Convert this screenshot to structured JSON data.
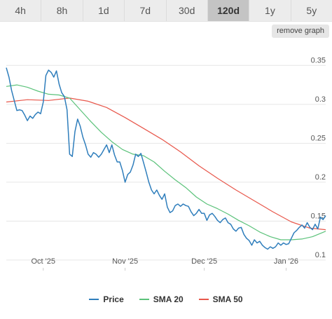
{
  "tabs": [
    {
      "label": "4h",
      "active": false
    },
    {
      "label": "8h",
      "active": false
    },
    {
      "label": "1d",
      "active": false
    },
    {
      "label": "7d",
      "active": false
    },
    {
      "label": "30d",
      "active": false
    },
    {
      "label": "120d",
      "active": true
    },
    {
      "label": "1y",
      "active": false
    },
    {
      "label": "5y",
      "active": false
    }
  ],
  "remove_graph_label": "remove graph",
  "chart_data": {
    "type": "line",
    "title": "",
    "xlabel": "",
    "ylabel": "",
    "x_range": [
      "2025-09-17",
      "2026-01-16"
    ],
    "x_ticks": [
      {
        "date": "2025-10-01",
        "label": "Oct '25"
      },
      {
        "date": "2025-11-01",
        "label": "Nov '25"
      },
      {
        "date": "2025-12-01",
        "label": "Dec '25"
      },
      {
        "date": "2026-01-01",
        "label": "Jan '26"
      }
    ],
    "y_ticks": [
      0.1,
      0.15,
      0.2,
      0.25,
      0.3,
      0.35
    ],
    "y_tick_labels": [
      "0.1",
      "0.15",
      "0.2",
      "0.25",
      "0.3",
      "0.35"
    ],
    "ylim": [
      0.09,
      0.38
    ],
    "grid": "horizontal",
    "y_axis_side": "right",
    "legend_position": "bottom",
    "series": [
      {
        "name": "Price",
        "color": "#2f7ebc",
        "points": [
          [
            "2025-09-17",
            0.347
          ],
          [
            "2025-09-18",
            0.335
          ],
          [
            "2025-09-19",
            0.318
          ],
          [
            "2025-09-20",
            0.305
          ],
          [
            "2025-09-21",
            0.292
          ],
          [
            "2025-09-22",
            0.293
          ],
          [
            "2025-09-23",
            0.292
          ],
          [
            "2025-09-24",
            0.286
          ],
          [
            "2025-09-25",
            0.279
          ],
          [
            "2025-09-26",
            0.285
          ],
          [
            "2025-09-27",
            0.282
          ],
          [
            "2025-09-28",
            0.287
          ],
          [
            "2025-09-29",
            0.29
          ],
          [
            "2025-09-30",
            0.288
          ],
          [
            "2025-10-01",
            0.303
          ],
          [
            "2025-10-02",
            0.337
          ],
          [
            "2025-10-03",
            0.344
          ],
          [
            "2025-10-04",
            0.341
          ],
          [
            "2025-10-05",
            0.335
          ],
          [
            "2025-10-06",
            0.343
          ],
          [
            "2025-10-07",
            0.326
          ],
          [
            "2025-10-08",
            0.315
          ],
          [
            "2025-10-09",
            0.31
          ],
          [
            "2025-10-10",
            0.293
          ],
          [
            "2025-10-11",
            0.236
          ],
          [
            "2025-10-12",
            0.233
          ],
          [
            "2025-10-13",
            0.265
          ],
          [
            "2025-10-14",
            0.281
          ],
          [
            "2025-10-15",
            0.272
          ],
          [
            "2025-10-16",
            0.258
          ],
          [
            "2025-10-17",
            0.248
          ],
          [
            "2025-10-18",
            0.236
          ],
          [
            "2025-10-19",
            0.232
          ],
          [
            "2025-10-20",
            0.238
          ],
          [
            "2025-10-21",
            0.236
          ],
          [
            "2025-10-22",
            0.232
          ],
          [
            "2025-10-23",
            0.236
          ],
          [
            "2025-10-24",
            0.242
          ],
          [
            "2025-10-25",
            0.248
          ],
          [
            "2025-10-26",
            0.238
          ],
          [
            "2025-10-27",
            0.248
          ],
          [
            "2025-10-28",
            0.235
          ],
          [
            "2025-10-29",
            0.226
          ],
          [
            "2025-10-30",
            0.226
          ],
          [
            "2025-10-31",
            0.215
          ],
          [
            "2025-11-01",
            0.2
          ],
          [
            "2025-11-02",
            0.21
          ],
          [
            "2025-11-03",
            0.213
          ],
          [
            "2025-11-04",
            0.222
          ],
          [
            "2025-11-05",
            0.236
          ],
          [
            "2025-11-06",
            0.233
          ],
          [
            "2025-11-07",
            0.237
          ],
          [
            "2025-11-08",
            0.225
          ],
          [
            "2025-11-09",
            0.213
          ],
          [
            "2025-11-10",
            0.2
          ],
          [
            "2025-11-11",
            0.19
          ],
          [
            "2025-11-12",
            0.185
          ],
          [
            "2025-11-13",
            0.19
          ],
          [
            "2025-11-14",
            0.183
          ],
          [
            "2025-11-15",
            0.178
          ],
          [
            "2025-11-16",
            0.185
          ],
          [
            "2025-11-17",
            0.168
          ],
          [
            "2025-11-18",
            0.161
          ],
          [
            "2025-11-19",
            0.163
          ],
          [
            "2025-11-20",
            0.17
          ],
          [
            "2025-11-21",
            0.172
          ],
          [
            "2025-11-22",
            0.169
          ],
          [
            "2025-11-23",
            0.172
          ],
          [
            "2025-11-24",
            0.17
          ],
          [
            "2025-11-25",
            0.169
          ],
          [
            "2025-11-26",
            0.162
          ],
          [
            "2025-11-27",
            0.157
          ],
          [
            "2025-11-28",
            0.16
          ],
          [
            "2025-11-29",
            0.165
          ],
          [
            "2025-11-30",
            0.16
          ],
          [
            "2025-12-01",
            0.16
          ],
          [
            "2025-12-02",
            0.151
          ],
          [
            "2025-12-03",
            0.158
          ],
          [
            "2025-12-04",
            0.16
          ],
          [
            "2025-12-05",
            0.156
          ],
          [
            "2025-12-06",
            0.151
          ],
          [
            "2025-12-07",
            0.148
          ],
          [
            "2025-12-08",
            0.152
          ],
          [
            "2025-12-09",
            0.154
          ],
          [
            "2025-12-10",
            0.148
          ],
          [
            "2025-12-11",
            0.146
          ],
          [
            "2025-12-12",
            0.14
          ],
          [
            "2025-12-13",
            0.137
          ],
          [
            "2025-12-14",
            0.141
          ],
          [
            "2025-12-15",
            0.142
          ],
          [
            "2025-12-16",
            0.133
          ],
          [
            "2025-12-17",
            0.128
          ],
          [
            "2025-12-18",
            0.125
          ],
          [
            "2025-12-19",
            0.119
          ],
          [
            "2025-12-20",
            0.126
          ],
          [
            "2025-12-21",
            0.122
          ],
          [
            "2025-12-22",
            0.124
          ],
          [
            "2025-12-23",
            0.119
          ],
          [
            "2025-12-24",
            0.116
          ],
          [
            "2025-12-25",
            0.114
          ],
          [
            "2025-12-26",
            0.117
          ],
          [
            "2025-12-27",
            0.115
          ],
          [
            "2025-12-28",
            0.117
          ],
          [
            "2025-12-29",
            0.122
          ],
          [
            "2025-12-30",
            0.119
          ],
          [
            "2025-12-31",
            0.122
          ],
          [
            "2026-01-01",
            0.12
          ],
          [
            "2026-01-02",
            0.121
          ],
          [
            "2026-01-03",
            0.128
          ],
          [
            "2026-01-04",
            0.135
          ],
          [
            "2026-01-05",
            0.138
          ],
          [
            "2026-01-06",
            0.142
          ],
          [
            "2026-01-07",
            0.145
          ],
          [
            "2026-01-08",
            0.141
          ],
          [
            "2026-01-09",
            0.148
          ],
          [
            "2026-01-10",
            0.142
          ],
          [
            "2026-01-11",
            0.139
          ],
          [
            "2026-01-12",
            0.146
          ],
          [
            "2026-01-13",
            0.14
          ],
          [
            "2026-01-14",
            0.155
          ],
          [
            "2026-01-15",
            0.152
          ],
          [
            "2026-01-16",
            0.157
          ]
        ]
      },
      {
        "name": "SMA 20",
        "color": "#5bc27a",
        "points": [
          [
            "2025-09-17",
            0.323
          ],
          [
            "2025-09-21",
            0.325
          ],
          [
            "2025-09-25",
            0.322
          ],
          [
            "2025-09-29",
            0.317
          ],
          [
            "2025-10-03",
            0.313
          ],
          [
            "2025-10-07",
            0.312
          ],
          [
            "2025-10-11",
            0.308
          ],
          [
            "2025-10-15",
            0.293
          ],
          [
            "2025-10-19",
            0.278
          ],
          [
            "2025-10-23",
            0.264
          ],
          [
            "2025-10-27",
            0.252
          ],
          [
            "2025-10-31",
            0.242
          ],
          [
            "2025-11-04",
            0.236
          ],
          [
            "2025-11-08",
            0.234
          ],
          [
            "2025-11-12",
            0.226
          ],
          [
            "2025-11-16",
            0.214
          ],
          [
            "2025-11-20",
            0.203
          ],
          [
            "2025-11-24",
            0.193
          ],
          [
            "2025-11-28",
            0.181
          ],
          [
            "2025-12-02",
            0.172
          ],
          [
            "2025-12-06",
            0.166
          ],
          [
            "2025-12-10",
            0.159
          ],
          [
            "2025-12-14",
            0.151
          ],
          [
            "2025-12-18",
            0.144
          ],
          [
            "2025-12-22",
            0.136
          ],
          [
            "2025-12-26",
            0.13
          ],
          [
            "2025-12-30",
            0.126
          ],
          [
            "2026-01-03",
            0.126
          ],
          [
            "2026-01-07",
            0.127
          ],
          [
            "2026-01-11",
            0.13
          ],
          [
            "2026-01-16",
            0.137
          ]
        ]
      },
      {
        "name": "SMA 50",
        "color": "#e8574b",
        "points": [
          [
            "2025-09-17",
            0.303
          ],
          [
            "2025-09-25",
            0.306
          ],
          [
            "2025-10-03",
            0.305
          ],
          [
            "2025-10-11",
            0.308
          ],
          [
            "2025-10-18",
            0.304
          ],
          [
            "2025-10-25",
            0.296
          ],
          [
            "2025-11-01",
            0.283
          ],
          [
            "2025-11-08",
            0.269
          ],
          [
            "2025-11-15",
            0.255
          ],
          [
            "2025-11-22",
            0.239
          ],
          [
            "2025-11-29",
            0.221
          ],
          [
            "2025-12-06",
            0.205
          ],
          [
            "2025-12-13",
            0.19
          ],
          [
            "2025-12-20",
            0.176
          ],
          [
            "2025-12-27",
            0.162
          ],
          [
            "2026-01-03",
            0.149
          ],
          [
            "2026-01-10",
            0.141
          ],
          [
            "2026-01-16",
            0.139
          ]
        ]
      }
    ]
  }
}
